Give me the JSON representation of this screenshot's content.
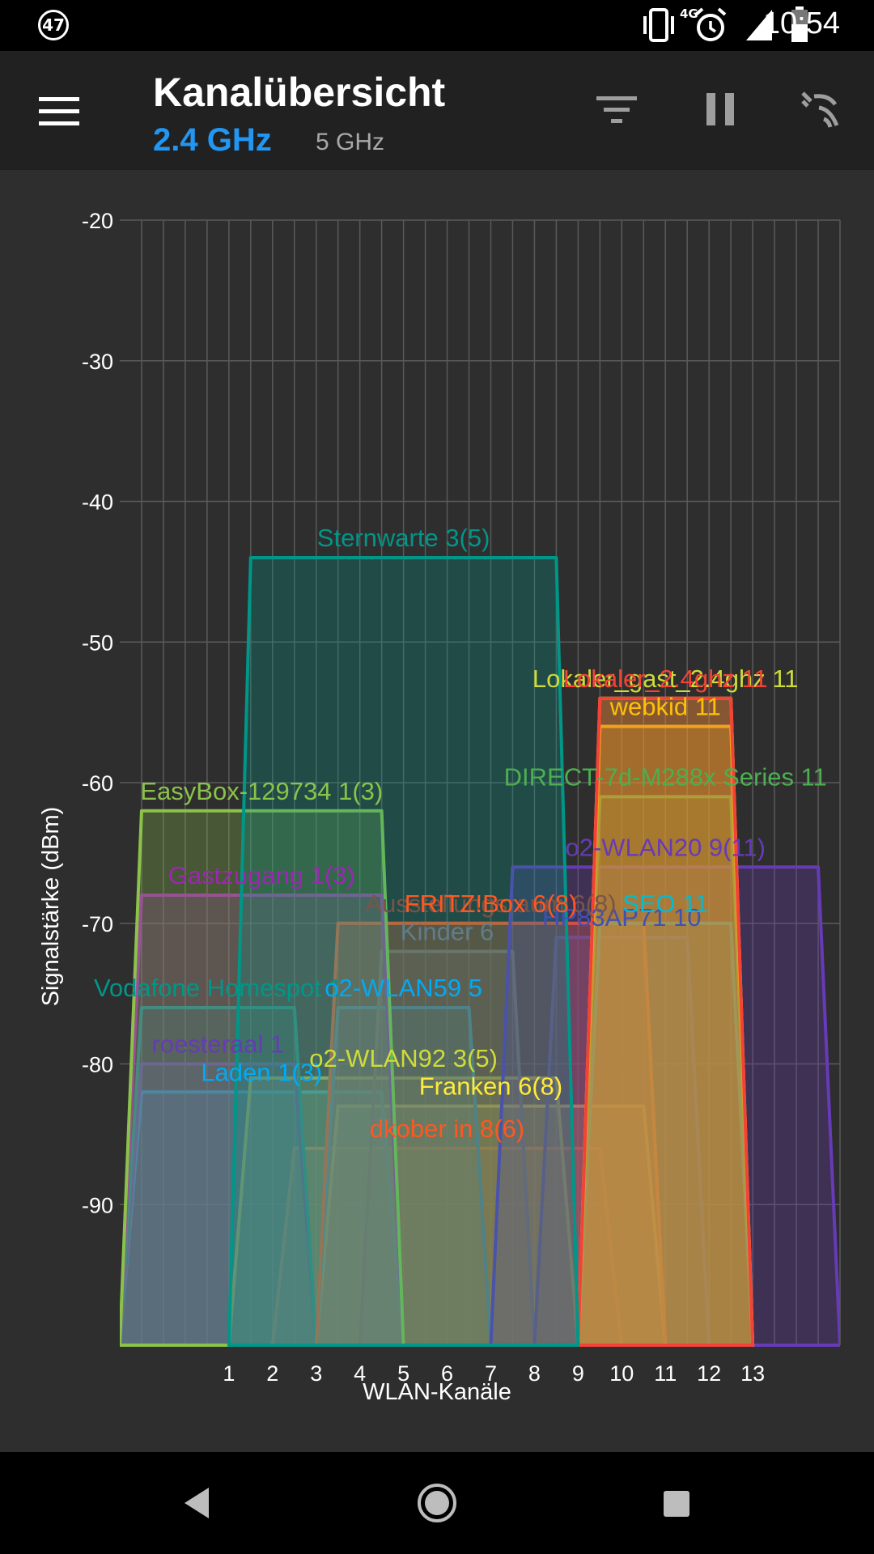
{
  "status_bar": {
    "notification_count": "47",
    "network": "4G",
    "time": "10:54",
    "icons": [
      "vibrate-icon",
      "alarm-icon",
      "signal-icon",
      "battery-icon"
    ]
  },
  "app_bar": {
    "title": "Kanalübersicht",
    "tabs": [
      {
        "label": "2.4 GHz",
        "active": true
      },
      {
        "label": "5 GHz",
        "active": false
      }
    ],
    "accent_color": "#2196f3",
    "icons": [
      "menu-icon",
      "filter-icon",
      "pause-icon",
      "wifi-scan-icon"
    ]
  },
  "chart_data": {
    "type": "area",
    "ylabel": "Signalstärke (dBm)",
    "xlabel": "WLAN-Kanäle",
    "ylim": [
      -100,
      -20
    ],
    "xlim": [
      -1.5,
      15
    ],
    "y_ticks": [
      -20,
      -30,
      -40,
      -50,
      -60,
      -70,
      -80,
      -90
    ],
    "x_ticks": [
      1,
      2,
      3,
      4,
      5,
      6,
      7,
      8,
      9,
      10,
      11,
      12,
      13
    ],
    "grid": true,
    "networks": [
      {
        "label": "Sternwarte 3(5)",
        "left": 1,
        "right": 9,
        "signal": -44,
        "color": "#009688"
      },
      {
        "label": "Lokaler_gast_2.4ghz 11",
        "left": 9,
        "right": 13,
        "signal": -54,
        "color": "#cddc39"
      },
      {
        "label": "Lokaler_2.4ghz 11",
        "left": 9,
        "right": 13,
        "signal": -54,
        "color": "#f44336"
      },
      {
        "label": "webkid 11",
        "left": 9,
        "right": 13,
        "signal": -56,
        "color": "#ffc107"
      },
      {
        "label": "DIRECT-7d-M288x Series 11",
        "left": 9,
        "right": 13,
        "signal": -61,
        "color": "#4caf50"
      },
      {
        "label": "EasyBox-129734 1(3)",
        "left": -1.5,
        "right": 5,
        "signal": -62,
        "color": "#8bc34a"
      },
      {
        "label": "o2-WLAN20 9(11)",
        "left": 7,
        "right": 15,
        "signal": -66,
        "color": "#673ab7"
      },
      {
        "label": "Gastzugang 1(3)",
        "left": -1.5,
        "right": 5,
        "signal": -68,
        "color": "#9c27b0"
      },
      {
        "label": "Ausstellungsraum 6(8)",
        "left": 3,
        "right": 11,
        "signal": -70,
        "color": "#795548"
      },
      {
        "label": "FRITZ!Box 6(8)",
        "left": 3,
        "right": 11,
        "signal": -70,
        "color": "#ff5722"
      },
      {
        "label": "SEO 11",
        "left": 9,
        "right": 13,
        "signal": -70,
        "color": "#00bcd4"
      },
      {
        "label": "HP83AP71 10",
        "left": 8,
        "right": 12,
        "signal": -71,
        "color": "#3f51b5"
      },
      {
        "label": "Kinder 6",
        "left": 4,
        "right": 8,
        "signal": -72,
        "color": "#607d8b"
      },
      {
        "label": "Vodafone Homespot 1",
        "left": -1.5,
        "right": 3,
        "signal": -76,
        "color": "#009688"
      },
      {
        "label": "o2-WLAN59 5",
        "left": 3,
        "right": 7,
        "signal": -76,
        "color": "#03a9f4"
      },
      {
        "label": "roesteraal 1",
        "left": -1.5,
        "right": 3,
        "signal": -80,
        "color": "#673ab7"
      },
      {
        "label": "o2-WLAN92 3(5)",
        "left": 1,
        "right": 9,
        "signal": -81,
        "color": "#cddc39"
      },
      {
        "label": "Laden 1(3)",
        "left": -1.5,
        "right": 5,
        "signal": -82,
        "color": "#03a9f4"
      },
      {
        "label": "Franken 6(8)",
        "left": 3,
        "right": 11,
        "signal": -83,
        "color": "#ffeb3b"
      },
      {
        "label": "dkober in 8(6)",
        "left": 2,
        "right": 10,
        "signal": -86,
        "color": "#ff5722"
      }
    ]
  }
}
